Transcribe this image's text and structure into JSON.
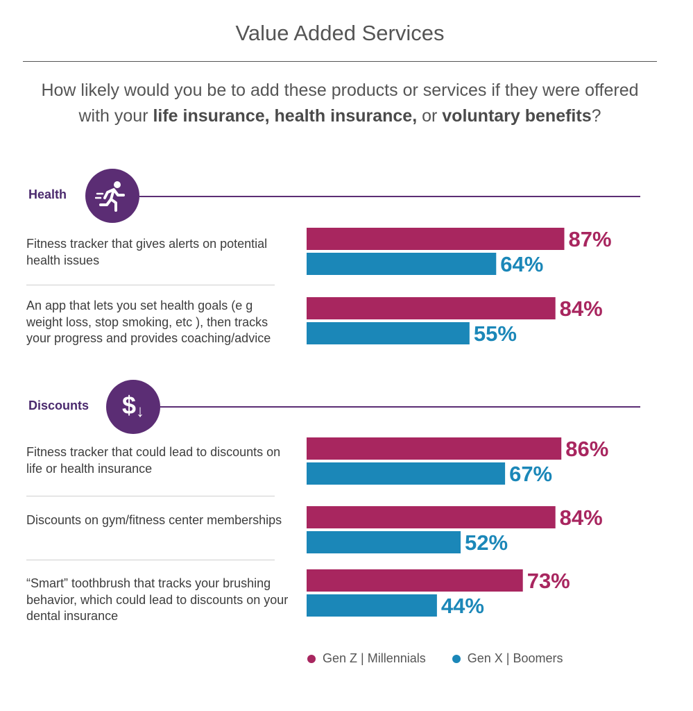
{
  "title": "Value Added Services",
  "question": {
    "part1": "How likely would you be to add these products or services if they were offered with your ",
    "bold1": "life insurance, health insurance,",
    "part2": " or ",
    "bold2": "voluntary benefits",
    "part3": "?"
  },
  "sections": [
    {
      "label": "Health",
      "icon": "running-person-icon"
    },
    {
      "label": "Discounts",
      "icon": "dollar-down-arrow-icon",
      "icon_text": "$",
      "icon_arrow": "↓"
    }
  ],
  "items": [
    {
      "label": "Fitness tracker that gives alerts on potential health issues"
    },
    {
      "label": "An app that lets you set health goals (e g  weight loss, stop smoking, etc ), then tracks your progress and provides coaching/advice"
    },
    {
      "label": "Fitness tracker that could lead to discounts on life or health insurance"
    },
    {
      "label": "Discounts on gym/fitness center memberships"
    },
    {
      "label": "“Smart” toothbrush that tracks your brushing behavior, which could lead to discounts on your dental insurance"
    }
  ],
  "legend": {
    "series1": "Gen Z  |  Millennials",
    "series2": "Gen X  |  Boomers"
  },
  "chart_data": {
    "type": "bar",
    "orientation": "horizontal",
    "categories": [
      "Fitness tracker that gives alerts on potential health issues",
      "An app that lets you set health goals (e g  weight loss, stop smoking, etc ), then tracks your progress and provides coaching/advice",
      "Fitness tracker that could lead to discounts on life or health insurance",
      "Discounts on gym/fitness center memberships",
      "“Smart” toothbrush that tracks your brushing behavior, which could lead to discounts on your dental insurance"
    ],
    "series": [
      {
        "name": "Gen Z  |  Millennials",
        "color": "#a8265f",
        "values": [
          87,
          84,
          86,
          84,
          73
        ]
      },
      {
        "name": "Gen X  |  Boomers",
        "color": "#1b87b8",
        "values": [
          64,
          55,
          67,
          52,
          44
        ]
      }
    ],
    "value_suffix": "%",
    "xlim": [
      0,
      100
    ],
    "legend_position": "bottom"
  }
}
